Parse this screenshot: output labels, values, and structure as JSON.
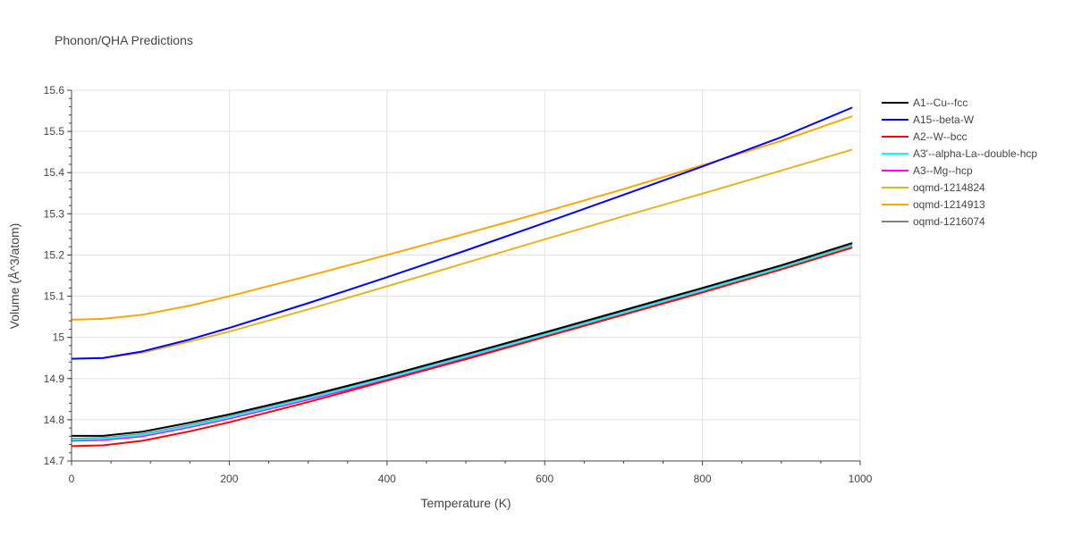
{
  "chart_data": {
    "type": "line",
    "title": "Phonon/QHA Predictions",
    "xlabel": "Temperature (K)",
    "ylabel": "Volume (Å^3/atom)",
    "xlim": [
      0,
      1000
    ],
    "ylim": [
      14.7,
      15.6
    ],
    "xticks": [
      0,
      200,
      400,
      600,
      800,
      1000
    ],
    "xtick_labels": [
      "0",
      "200",
      "400",
      "600",
      "800",
      "1000"
    ],
    "yticks": [
      14.7,
      14.8,
      14.9,
      15.0,
      15.1,
      15.2,
      15.3,
      15.4,
      15.5,
      15.6
    ],
    "ytick_labels": [
      "14.7",
      "14.8",
      "14.9",
      "15",
      "15.1",
      "15.2",
      "15.3",
      "15.4",
      "15.5",
      "15.6"
    ],
    "grid": true,
    "legend_position": "right",
    "series": [
      {
        "name": "A1--Cu--fcc",
        "color": "#000000",
        "x": [
          0,
          40,
          90,
          150,
          200,
          300,
          400,
          500,
          600,
          700,
          800,
          900,
          990
        ],
        "y": [
          14.761,
          14.761,
          14.771,
          14.793,
          14.813,
          14.858,
          14.907,
          14.959,
          15.012,
          15.066,
          15.12,
          15.175,
          15.229
        ]
      },
      {
        "name": "A15--beta-W",
        "color": "#0000ff",
        "x": [
          0,
          40,
          90,
          150,
          200,
          300,
          400,
          500,
          600,
          700,
          800,
          900,
          990
        ],
        "y": [
          14.948,
          14.95,
          14.966,
          14.995,
          15.023,
          15.083,
          15.146,
          15.211,
          15.278,
          15.346,
          15.415,
          15.486,
          15.558
        ]
      },
      {
        "name": "A2--W--bcc",
        "color": "#ff0000",
        "x": [
          0,
          40,
          90,
          150,
          200,
          300,
          400,
          500,
          600,
          700,
          800,
          900,
          990
        ],
        "y": [
          14.736,
          14.738,
          14.749,
          14.772,
          14.794,
          14.843,
          14.895,
          14.947,
          15.001,
          15.055,
          15.109,
          15.165,
          15.218
        ]
      },
      {
        "name": "A3'--alpha-La--double-hcp",
        "color": "#00ffff",
        "x": [
          0,
          40,
          90,
          150,
          200,
          300,
          400,
          500,
          600,
          700,
          800,
          900,
          990
        ],
        "y": [
          14.752,
          14.754,
          14.763,
          14.785,
          14.806,
          14.852,
          14.901,
          14.953,
          15.006,
          15.06,
          15.114,
          15.169,
          15.222
        ]
      },
      {
        "name": "A3--Mg--hcp",
        "color": "#ff00ff",
        "x": [
          0,
          40,
          90,
          150,
          200,
          300,
          400,
          500,
          600,
          700,
          800,
          900,
          990
        ],
        "y": [
          14.749,
          14.751,
          14.76,
          14.782,
          14.803,
          14.849,
          14.898,
          14.95,
          15.003,
          15.057,
          15.111,
          15.166,
          15.219
        ]
      },
      {
        "name": "oqmd-1214824",
        "color": "#e6b422",
        "x": [
          0,
          40,
          90,
          150,
          200,
          300,
          400,
          500,
          600,
          700,
          800,
          900,
          990
        ],
        "y": [
          14.948,
          14.95,
          14.963,
          14.99,
          15.014,
          15.068,
          15.124,
          15.181,
          15.238,
          15.294,
          15.349,
          15.405,
          15.456
        ]
      },
      {
        "name": "oqmd-1214913",
        "color": "#ffa500",
        "x": [
          0,
          40,
          90,
          150,
          200,
          300,
          400,
          500,
          600,
          700,
          800,
          900,
          990
        ],
        "y": [
          15.043,
          15.045,
          15.055,
          15.077,
          15.1,
          15.149,
          15.2,
          15.252,
          15.305,
          15.36,
          15.418,
          15.477,
          15.537
        ]
      },
      {
        "name": "oqmd-1216074",
        "color": "#808080",
        "x": [
          0,
          40,
          90,
          150,
          200,
          300,
          400,
          500,
          600,
          700,
          800,
          900,
          990
        ],
        "y": [
          14.754,
          14.756,
          14.765,
          14.787,
          14.808,
          14.854,
          14.903,
          14.955,
          15.008,
          15.062,
          15.116,
          15.171,
          15.224
        ]
      }
    ]
  }
}
